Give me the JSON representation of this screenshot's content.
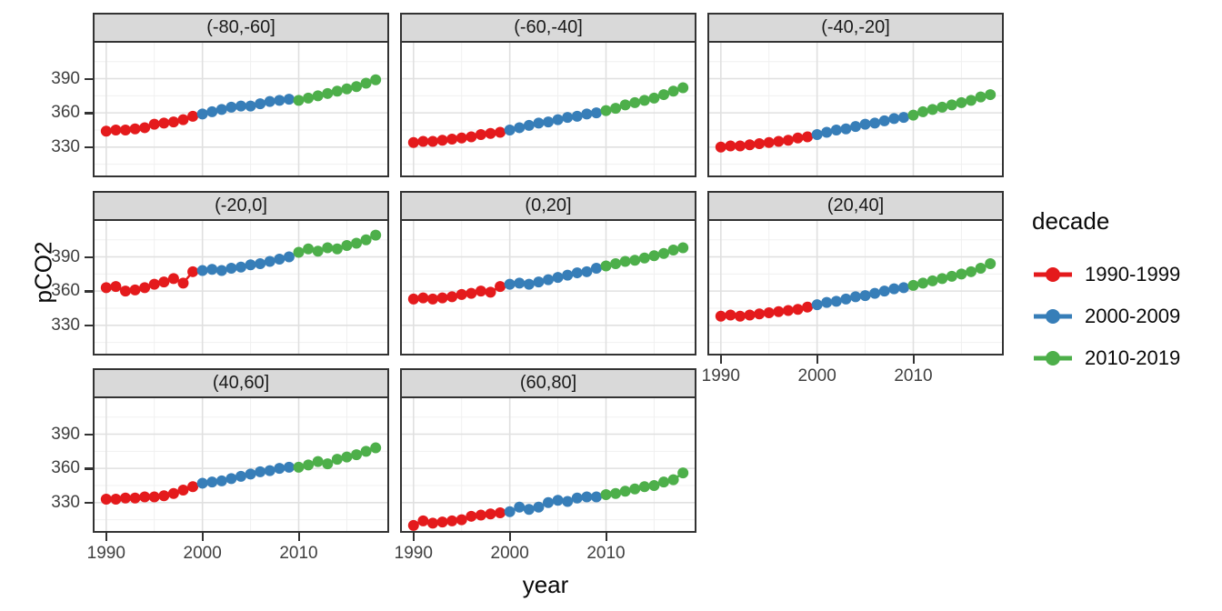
{
  "figure": {
    "y_axis_title": "pCO2",
    "x_axis_title": "year"
  },
  "chart_data": {
    "type": "scatter",
    "title": "",
    "xlabel": "year",
    "ylabel": "pCO2",
    "x_years": [
      1990,
      1991,
      1992,
      1993,
      1994,
      1995,
      1996,
      1997,
      1998,
      1999,
      2000,
      2001,
      2002,
      2003,
      2004,
      2005,
      2006,
      2007,
      2008,
      2009,
      2010,
      2011,
      2012,
      2013,
      2014,
      2015,
      2016,
      2017,
      2018
    ],
    "x_ticks": [
      1990,
      2000,
      2010
    ],
    "y_ticks": [
      390,
      360,
      330
    ],
    "x_minor_ticks": [
      1995,
      2005,
      2015
    ],
    "y_minor_ticks": [
      315,
      345,
      375,
      405
    ],
    "xlim": [
      1988.6,
      2019.4
    ],
    "ylim": [
      303.5,
      421.5
    ],
    "grid": "major+minor",
    "legend": {
      "title": "decade",
      "position": "right",
      "entries": [
        {
          "label": "1990-1999",
          "color": "#E41A1C",
          "year_start": 1990,
          "year_end": 1999
        },
        {
          "label": "2000-2009",
          "color": "#377EB8",
          "year_start": 2000,
          "year_end": 2009
        },
        {
          "label": "2010-2019",
          "color": "#4DAF4A",
          "year_start": 2010,
          "year_end": 2019
        }
      ]
    },
    "facets": [
      {
        "label": "(-80,-60]",
        "values": [
          344,
          345,
          345,
          346,
          347,
          350,
          351,
          352,
          354,
          357,
          359,
          361,
          363,
          365,
          366,
          366,
          368,
          370,
          371,
          372,
          371,
          373,
          375,
          377,
          379,
          381,
          383,
          386,
          389
        ]
      },
      {
        "label": "(-60,-40]",
        "values": [
          334,
          335,
          335,
          336,
          337,
          338,
          339,
          341,
          342,
          343,
          345,
          347,
          349,
          351,
          352,
          354,
          356,
          357,
          359,
          360,
          362,
          364,
          367,
          369,
          371,
          373,
          376,
          379,
          382
        ]
      },
      {
        "label": "(-40,-20]",
        "values": [
          330,
          331,
          331,
          332,
          333,
          334,
          335,
          336,
          338,
          339,
          341,
          343,
          345,
          346,
          348,
          350,
          351,
          353,
          355,
          356,
          358,
          361,
          363,
          365,
          367,
          369,
          371,
          374,
          376
        ]
      },
      {
        "label": "(-20,0]",
        "values": [
          363,
          364,
          360,
          361,
          363,
          366,
          368,
          371,
          367,
          377,
          378,
          379,
          378,
          380,
          381,
          383,
          384,
          386,
          388,
          390,
          394,
          397,
          395,
          398,
          397,
          400,
          402,
          405,
          409
        ]
      },
      {
        "label": "(0,20]",
        "values": [
          353,
          354,
          353,
          354,
          355,
          357,
          358,
          360,
          359,
          364,
          366,
          367,
          366,
          368,
          370,
          372,
          374,
          376,
          377,
          380,
          382,
          384,
          386,
          387,
          389,
          391,
          393,
          396,
          398
        ]
      },
      {
        "label": "(20,40]",
        "values": [
          338,
          339,
          338,
          339,
          340,
          341,
          342,
          343,
          344,
          346,
          348,
          350,
          351,
          353,
          355,
          356,
          358,
          360,
          362,
          363,
          365,
          367,
          369,
          371,
          373,
          375,
          377,
          380,
          384
        ]
      },
      {
        "label": "(40,60]",
        "values": [
          333,
          333,
          334,
          334,
          335,
          335,
          336,
          338,
          341,
          344,
          347,
          348,
          349,
          351,
          353,
          355,
          357,
          358,
          360,
          361,
          361,
          363,
          366,
          364,
          368,
          370,
          372,
          375,
          378
        ]
      },
      {
        "label": "(60,80]",
        "values": [
          310,
          314,
          312,
          313,
          314,
          315,
          318,
          319,
          320,
          321,
          322,
          326,
          324,
          326,
          330,
          332,
          331,
          334,
          335,
          335,
          337,
          338,
          340,
          342,
          344,
          345,
          348,
          350,
          356
        ]
      }
    ],
    "grid_colors": {
      "major": "#e0e0e0",
      "minor": "#f0f0f0"
    },
    "panel_border_color": "#333333",
    "strip_fill": "#d9d9d9",
    "tick_text_color": "#404040"
  }
}
